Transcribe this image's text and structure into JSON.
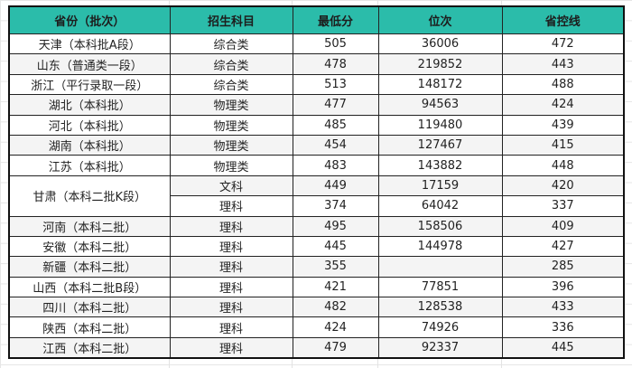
{
  "table": {
    "header_color": "#2bbcaa",
    "columns": [
      "省份（批次）",
      "招生科目",
      "最低分",
      "位次",
      "省控线"
    ],
    "rows": [
      {
        "province": "天津（本科批A段）",
        "subject": "综合类",
        "min_score": "505",
        "rank": "36006",
        "control_line": "472"
      },
      {
        "province": "山东（普通类一段）",
        "subject": "综合类",
        "min_score": "478",
        "rank": "219852",
        "control_line": "443"
      },
      {
        "province": "浙江（平行录取一段）",
        "subject": "综合类",
        "min_score": "513",
        "rank": "148172",
        "control_line": "488"
      },
      {
        "province": "湖北（本科批）",
        "subject": "物理类",
        "min_score": "477",
        "rank": "94563",
        "control_line": "424"
      },
      {
        "province": "河北（本科批）",
        "subject": "物理类",
        "min_score": "485",
        "rank": "119480",
        "control_line": "439"
      },
      {
        "province": "湖南（本科批）",
        "subject": "物理类",
        "min_score": "454",
        "rank": "127467",
        "control_line": "415"
      },
      {
        "province": "江苏（本科批）",
        "subject": "物理类",
        "min_score": "483",
        "rank": "143882",
        "control_line": "448"
      },
      {
        "province": "甘肃（本科二批K段）",
        "subject": "文科",
        "min_score": "449",
        "rank": "17159",
        "control_line": "420",
        "rowspan": 2
      },
      {
        "subject": "理科",
        "min_score": "374",
        "rank": "64042",
        "control_line": "337"
      },
      {
        "province": "河南（本科二批）",
        "subject": "理科",
        "min_score": "495",
        "rank": "158506",
        "control_line": "409"
      },
      {
        "province": "安徽（本科二批）",
        "subject": "理科",
        "min_score": "445",
        "rank": "144978",
        "control_line": "427"
      },
      {
        "province": "新疆（本科二批）",
        "subject": "理科",
        "min_score": "355",
        "rank": "",
        "control_line": "285"
      },
      {
        "province": "山西（本科二批B段）",
        "subject": "理科",
        "min_score": "421",
        "rank": "77851",
        "control_line": "396"
      },
      {
        "province": "四川（本科二批）",
        "subject": "理科",
        "min_score": "482",
        "rank": "128538",
        "control_line": "433"
      },
      {
        "province": "陕西（本科二批）",
        "subject": "理科",
        "min_score": "424",
        "rank": "74926",
        "control_line": "336"
      },
      {
        "province": "江西（本科二批）",
        "subject": "理科",
        "min_score": "479",
        "rank": "92337",
        "control_line": "445"
      }
    ]
  }
}
